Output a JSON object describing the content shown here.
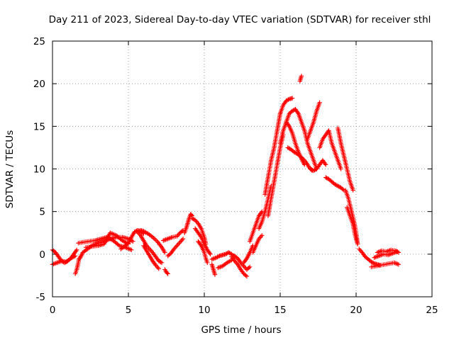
{
  "chart_data": {
    "type": "scatter",
    "title": "Day 211 of 2023, Sidereal Day-to-day VTEC variation (SDTVAR) for receiver sthl",
    "xlabel": "GPS time / hours",
    "ylabel": "SDTVAR / TECUs",
    "xlim": [
      0,
      25
    ],
    "ylim": [
      -5,
      25
    ],
    "xticks": [
      "0",
      "5",
      "10",
      "15",
      "20",
      "25"
    ],
    "yticks": [
      "-5",
      "0",
      "5",
      "10",
      "15",
      "20",
      "25"
    ],
    "grid": true,
    "marker": "+",
    "series": [
      {
        "name": "sthl",
        "color": "#ff0000",
        "segments": [
          {
            "x": [
              0.0,
              0.2,
              0.4,
              0.6,
              0.8,
              1.0,
              1.2,
              1.4,
              1.6
            ],
            "y": [
              0.5,
              0.2,
              -0.3,
              -0.8,
              -1.0,
              -0.8,
              -0.5,
              0.0,
              0.5
            ]
          },
          {
            "x": [
              0.0,
              0.3,
              0.6,
              0.9,
              1.2,
              1.5
            ],
            "y": [
              -1.2,
              -1.0,
              -0.8,
              -0.9,
              -0.5,
              -0.2
            ]
          },
          {
            "x": [
              1.5,
              1.6,
              1.7,
              1.75
            ],
            "y": [
              -2.3,
              -1.8,
              -1.0,
              -0.5
            ]
          },
          {
            "x": [
              1.8,
              2.0,
              2.3,
              2.6,
              3.0,
              3.4,
              3.8,
              4.2,
              4.6,
              5.0,
              5.3
            ],
            "y": [
              -0.5,
              0.2,
              0.6,
              1.0,
              1.3,
              1.5,
              1.8,
              2.0,
              2.0,
              1.8,
              1.5
            ]
          },
          {
            "x": [
              1.7,
              2.0,
              2.4,
              2.8,
              3.2,
              3.6,
              4.0,
              4.4,
              4.8,
              5.2
            ],
            "y": [
              1.3,
              1.4,
              1.5,
              1.6,
              1.8,
              2.0,
              1.6,
              1.0,
              0.8,
              0.5
            ]
          },
          {
            "x": [
              2.2,
              2.6,
              3.0,
              3.4,
              3.8,
              4.2,
              4.6,
              5.0
            ],
            "y": [
              0.8,
              0.9,
              1.0,
              1.2,
              2.5,
              2.2,
              1.6,
              1.2
            ]
          },
          {
            "x": [
              4.5,
              4.8,
              5.0,
              5.2,
              5.4,
              5.6,
              5.8,
              6.0
            ],
            "y": [
              0.6,
              1.0,
              1.3,
              2.0,
              2.6,
              2.8,
              2.7,
              2.4
            ]
          },
          {
            "x": [
              5.6,
              5.8,
              6.0,
              6.2,
              6.4,
              6.6,
              6.8,
              7.0,
              7.2
            ],
            "y": [
              2.6,
              2.2,
              1.6,
              1.0,
              0.6,
              0.2,
              -0.3,
              -0.8,
              -1.0
            ]
          },
          {
            "x": [
              5.8,
              6.0,
              6.3,
              6.6,
              6.9,
              7.2,
              7.4
            ],
            "y": [
              2.8,
              2.7,
              2.4,
              2.0,
              1.5,
              0.8,
              0.2
            ]
          },
          {
            "x": [
              6.0,
              6.2,
              6.4,
              6.6,
              6.8,
              7.0
            ],
            "y": [
              1.0,
              0.4,
              -0.2,
              -0.8,
              -1.3,
              -1.7
            ]
          },
          {
            "x": [
              7.4,
              7.5,
              7.6
            ],
            "y": [
              -1.8,
              -2.1,
              -2.3
            ]
          },
          {
            "x": [
              7.3,
              7.6,
              7.9,
              8.2,
              8.4,
              8.6
            ],
            "y": [
              1.6,
              1.8,
              2.0,
              2.1,
              2.5,
              2.8
            ]
          },
          {
            "x": [
              7.6,
              7.8,
              8.0,
              8.2,
              8.4,
              8.6
            ],
            "y": [
              -0.2,
              0.1,
              0.6,
              1.0,
              1.4,
              1.8
            ]
          },
          {
            "x": [
              8.7,
              8.8,
              8.9,
              9.0,
              9.1,
              9.2
            ],
            "y": [
              2.5,
              3.0,
              3.6,
              4.2,
              4.7,
              4.5
            ]
          },
          {
            "x": [
              9.2,
              9.4,
              9.6,
              9.8,
              10.0,
              10.1
            ],
            "y": [
              4.2,
              4.0,
              3.6,
              3.0,
              2.0,
              1.2
            ]
          },
          {
            "x": [
              9.4,
              9.6,
              9.8,
              10.0,
              10.2,
              10.4
            ],
            "y": [
              3.0,
              2.5,
              2.0,
              1.2,
              0.5,
              0.0
            ]
          },
          {
            "x": [
              9.6,
              9.8,
              10.0,
              10.1,
              10.2
            ],
            "y": [
              1.5,
              1.0,
              0.2,
              -0.5,
              -1.0
            ]
          },
          {
            "x": [
              10.5,
              10.6,
              10.7
            ],
            "y": [
              -1.2,
              -1.8,
              -2.4
            ]
          },
          {
            "x": [
              10.5,
              10.8,
              11.0,
              11.2,
              11.4,
              11.6,
              11.8,
              12.0
            ],
            "y": [
              -0.6,
              -0.4,
              -0.2,
              -0.1,
              0.0,
              0.2,
              0.0,
              -0.3
            ]
          },
          {
            "x": [
              10.9,
              11.2,
              11.5,
              11.8
            ],
            "y": [
              -1.6,
              -1.4,
              -1.0,
              -0.7
            ]
          },
          {
            "x": [
              11.8,
              12.0,
              12.2,
              12.4,
              12.6,
              12.8
            ],
            "y": [
              -0.3,
              -0.8,
              -1.2,
              -1.8,
              -2.3,
              -2.6
            ]
          },
          {
            "x": [
              12.0,
              12.2,
              12.4,
              12.6,
              12.8,
              13.0
            ],
            "y": [
              -0.2,
              -0.5,
              -1.0,
              -1.4,
              -1.8,
              -1.5
            ]
          },
          {
            "x": [
              12.6,
              12.8,
              13.0,
              13.2
            ],
            "y": [
              -1.0,
              -0.5,
              0.2,
              1.0
            ]
          },
          {
            "x": [
              13.0,
              13.2,
              13.4,
              13.6,
              13.8
            ],
            "y": [
              1.5,
              2.5,
              3.5,
              4.5,
              5.0
            ]
          },
          {
            "x": [
              13.2,
              13.4,
              13.6,
              13.8
            ],
            "y": [
              0.2,
              1.0,
              1.8,
              2.2
            ]
          },
          {
            "x": [
              13.6,
              13.8,
              14.0,
              14.2,
              14.4
            ],
            "y": [
              3.0,
              3.8,
              5.0,
              6.5,
              8.0
            ]
          },
          {
            "x": [
              14.0,
              14.2,
              14.4,
              14.6,
              14.8,
              15.0
            ],
            "y": [
              7.0,
              9.0,
              11.0,
              12.5,
              14.5,
              16.5
            ]
          },
          {
            "x": [
              14.2,
              14.4,
              14.6,
              14.8,
              15.0,
              15.2
            ],
            "y": [
              4.5,
              6.5,
              8.5,
              10.5,
              12.5,
              14.0
            ]
          },
          {
            "x": [
              15.0,
              15.2,
              15.4,
              15.6,
              15.8
            ],
            "y": [
              16.5,
              17.5,
              18.0,
              18.2,
              18.3
            ]
          },
          {
            "x": [
              15.0,
              15.2,
              15.4,
              15.6,
              15.8,
              16.0
            ],
            "y": [
              13.0,
              14.5,
              15.5,
              16.5,
              16.8,
              17.0
            ]
          },
          {
            "x": [
              15.4,
              15.6,
              15.8,
              16.0,
              16.2,
              16.4,
              16.6
            ],
            "y": [
              15.5,
              15.0,
              14.2,
              13.0,
              12.0,
              11.2,
              10.5
            ]
          },
          {
            "x": [
              15.5,
              15.7,
              15.9,
              16.1,
              16.3,
              16.5,
              16.7,
              16.9,
              17.1
            ],
            "y": [
              12.5,
              12.3,
              12.0,
              11.8,
              11.5,
              11.2,
              10.8,
              10.2,
              9.8
            ]
          },
          {
            "x": [
              16.0,
              16.2,
              16.4,
              16.6,
              16.8,
              17.0,
              17.2,
              17.4
            ],
            "y": [
              17.0,
              16.5,
              15.5,
              14.5,
              13.0,
              12.0,
              11.0,
              10.0
            ]
          },
          {
            "x": [
              16.3,
              16.4
            ],
            "y": [
              20.3,
              20.9
            ]
          },
          {
            "x": [
              16.8,
              17.0,
              17.2,
              17.4,
              17.6
            ],
            "y": [
              13.5,
              14.5,
              15.5,
              16.8,
              17.8
            ]
          },
          {
            "x": [
              17.0,
              17.2,
              17.4,
              17.6,
              17.8,
              18.0
            ],
            "y": [
              10.0,
              9.8,
              10.0,
              10.5,
              11.0,
              10.5
            ]
          },
          {
            "x": [
              17.6,
              17.8,
              18.0,
              18.2,
              18.4,
              18.6,
              18.8,
              19.0
            ],
            "y": [
              12.5,
              13.5,
              14.0,
              14.5,
              13.0,
              12.0,
              11.0,
              10.0
            ]
          },
          {
            "x": [
              18.0,
              18.2,
              18.4,
              18.6,
              18.8,
              19.0,
              19.2
            ],
            "y": [
              9.0,
              8.8,
              8.5,
              8.2,
              8.0,
              7.8,
              7.5
            ]
          },
          {
            "x": [
              18.8,
              19.0,
              19.2,
              19.4,
              19.6,
              19.8
            ],
            "y": [
              14.8,
              13.0,
              11.5,
              10.0,
              8.5,
              7.5
            ]
          },
          {
            "x": [
              19.3,
              19.5,
              19.7,
              19.9,
              20.0,
              20.1
            ],
            "y": [
              7.5,
              6.5,
              5.0,
              3.5,
              2.5,
              1.2
            ]
          },
          {
            "x": [
              19.4,
              19.6,
              19.8,
              19.9,
              20.0,
              20.1
            ],
            "y": [
              5.5,
              4.5,
              3.5,
              2.5,
              1.8,
              1.2
            ]
          },
          {
            "x": [
              20.2,
              20.4,
              20.6,
              20.8,
              21.0,
              21.2,
              21.4,
              21.6
            ],
            "y": [
              0.6,
              0.2,
              -0.3,
              -0.6,
              -0.9,
              -1.1,
              -1.2,
              -1.3
            ]
          },
          {
            "x": [
              21.0,
              21.3,
              21.6,
              21.9,
              22.2,
              22.5,
              22.8
            ],
            "y": [
              -1.5,
              -1.4,
              -1.3,
              -1.2,
              -1.1,
              -1.0,
              -1.2
            ]
          },
          {
            "x": [
              21.2,
              21.5,
              21.8,
              22.1,
              22.4,
              22.7
            ],
            "y": [
              -0.4,
              -0.2,
              0.0,
              -0.1,
              0.1,
              0.3
            ]
          },
          {
            "x": [
              21.4,
              21.7,
              22.0,
              22.3,
              22.6,
              22.8
            ],
            "y": [
              0.2,
              0.4,
              0.3,
              0.5,
              0.4,
              0.2
            ]
          }
        ]
      }
    ]
  }
}
